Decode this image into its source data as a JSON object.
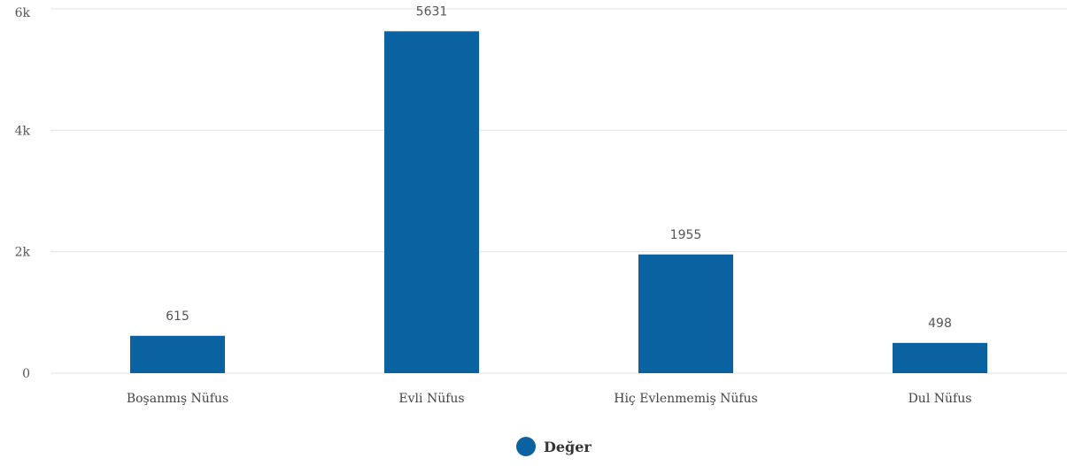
{
  "chart_data": {
    "type": "bar",
    "categories": [
      "Boşanmış Nüfus",
      "Evli Nüfus",
      "Hiç Evlenmemiş Nüfus",
      "Dul Nüfus"
    ],
    "series": [
      {
        "name": "Değer",
        "values": [
          615,
          5631,
          1955,
          498
        ],
        "data_labels": [
          "615",
          "5631",
          "1955",
          "498"
        ]
      }
    ],
    "ylim": [
      0,
      6000
    ],
    "y_ticks": [
      0,
      2000,
      4000,
      6000
    ],
    "y_tick_labels": [
      "0",
      "2k",
      "4k",
      "6k"
    ],
    "grid": true,
    "legend_position": "bottom-center",
    "colors": {
      "bar": "#0a62a0",
      "grid": "#e3e3e3"
    }
  }
}
